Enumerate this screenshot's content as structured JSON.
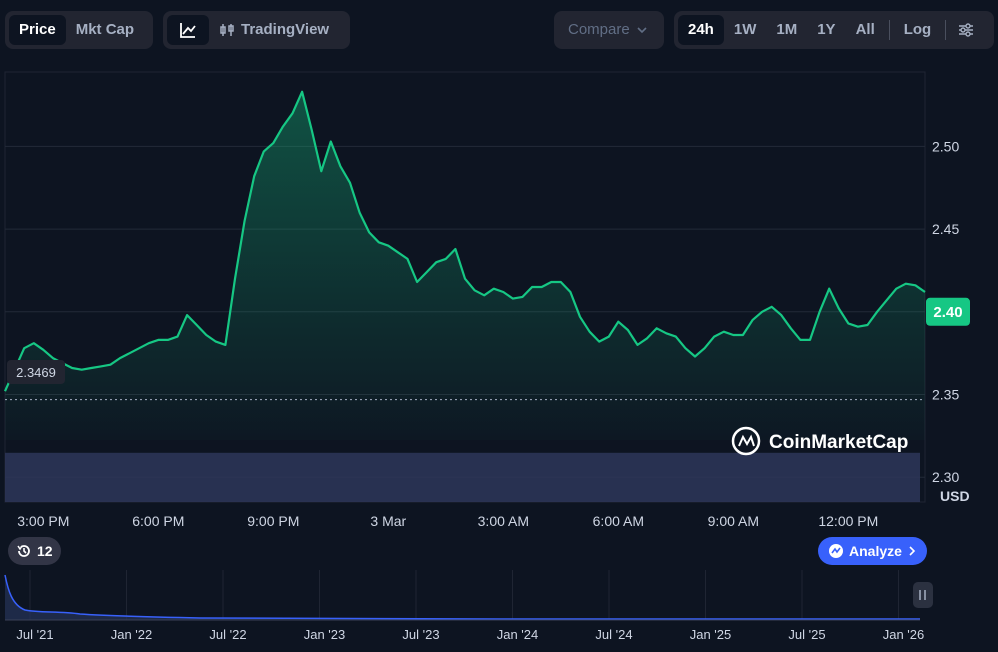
{
  "toolbar": {
    "tabs": [
      {
        "label": "Price",
        "active": true
      },
      {
        "label": "Mkt Cap",
        "active": false
      }
    ],
    "tradingview_label": "TradingView",
    "compare_label": "Compare",
    "ranges": [
      {
        "label": "24h",
        "active": true
      },
      {
        "label": "1W",
        "active": false
      },
      {
        "label": "1M",
        "active": false
      },
      {
        "label": "1Y",
        "active": false
      },
      {
        "label": "All",
        "active": false
      }
    ],
    "log_label": "Log",
    "icons": {
      "line": "line-chart-icon",
      "candles": "candlestick-icon",
      "chevron": "chevron-down-icon",
      "settings": "sliders-icon"
    }
  },
  "watermark": "CoinMarketCap",
  "reference_price": "2.3469",
  "current_price": "2.40",
  "unit_label": "USD",
  "history_badge": {
    "label": "12"
  },
  "analyze_label": "Analyze",
  "colors": {
    "line": "#16c784",
    "background": "#0d1421",
    "grid": "#2b3140",
    "volume": "#2e3659",
    "badge": "#16c784",
    "analyze": "#3861fb"
  },
  "chart_data": {
    "type": "line",
    "ylim": [
      2.285,
      2.545
    ],
    "y_ticks": [
      2.3,
      2.35,
      2.45,
      2.5
    ],
    "y_tick_labels": [
      "2.30",
      "2.35",
      "2.45",
      "2.50"
    ],
    "x_tick_labels": [
      "3:00 PM",
      "6:00 PM",
      "9:00 PM",
      "3 Mar",
      "3:00 AM",
      "6:00 AM",
      "9:00 AM",
      "12:00 PM"
    ],
    "x_tick_hours": [
      1,
      4,
      7,
      10,
      13,
      16,
      19,
      22
    ],
    "x_range_hours": [
      0,
      24
    ],
    "x": [
      0,
      0.25,
      0.5,
      0.75,
      1,
      1.25,
      1.5,
      1.75,
      2,
      2.25,
      2.5,
      2.75,
      3,
      3.25,
      3.5,
      3.75,
      4,
      4.25,
      4.5,
      4.75,
      5,
      5.25,
      5.5,
      5.75,
      6,
      6.25,
      6.5,
      6.75,
      7,
      7.25,
      7.5,
      7.75,
      8,
      8.25,
      8.5,
      8.75,
      9,
      9.25,
      9.5,
      9.75,
      10,
      10.25,
      10.5,
      10.75,
      11,
      11.25,
      11.5,
      11.75,
      12,
      12.25,
      12.5,
      12.75,
      13,
      13.25,
      13.5,
      13.75,
      14,
      14.25,
      14.5,
      14.75,
      15,
      15.25,
      15.5,
      15.75,
      16,
      16.25,
      16.5,
      16.75,
      17,
      17.25,
      17.5,
      17.75,
      18,
      18.25,
      18.5,
      18.75,
      19,
      19.25,
      19.5,
      19.75,
      20,
      20.25,
      20.5,
      20.75,
      21,
      21.25,
      21.5,
      21.75,
      22,
      22.25,
      22.5,
      22.75,
      23,
      23.25,
      23.5,
      23.75,
      24
    ],
    "price": [
      2.352,
      2.365,
      2.378,
      2.381,
      2.377,
      2.372,
      2.369,
      2.366,
      2.365,
      2.366,
      2.367,
      2.368,
      2.372,
      2.375,
      2.378,
      2.381,
      2.383,
      2.383,
      2.385,
      2.398,
      2.392,
      2.386,
      2.382,
      2.38,
      2.42,
      2.455,
      2.482,
      2.497,
      2.502,
      2.512,
      2.52,
      2.533,
      2.51,
      2.485,
      2.503,
      2.488,
      2.478,
      2.46,
      2.448,
      2.442,
      2.44,
      2.436,
      2.432,
      2.418,
      2.424,
      2.43,
      2.432,
      2.438,
      2.42,
      2.413,
      2.41,
      2.414,
      2.412,
      2.408,
      2.409,
      2.415,
      2.415,
      2.418,
      2.418,
      2.412,
      2.397,
      2.388,
      2.382,
      2.385,
      2.394,
      2.389,
      2.38,
      2.384,
      2.39,
      2.387,
      2.385,
      2.378,
      2.373,
      2.378,
      2.385,
      2.388,
      2.386,
      2.386,
      2.395,
      2.4,
      2.403,
      2.398,
      2.39,
      2.383,
      2.383,
      2.4,
      2.414,
      2.402,
      2.393,
      2.391,
      2.392,
      2.4,
      2.407,
      2.414,
      2.417,
      2.416,
      2.412,
      2.404,
      2.4
    ],
    "volume_level": 0.82
  },
  "timeline": {
    "labels": [
      "Jul '21",
      "Jan '22",
      "Jul '22",
      "Jan '23",
      "Jul '23",
      "Jan '24",
      "Jul '24",
      "Jan '25",
      "Jul '25",
      "Jan '26"
    ],
    "note": ""
  }
}
